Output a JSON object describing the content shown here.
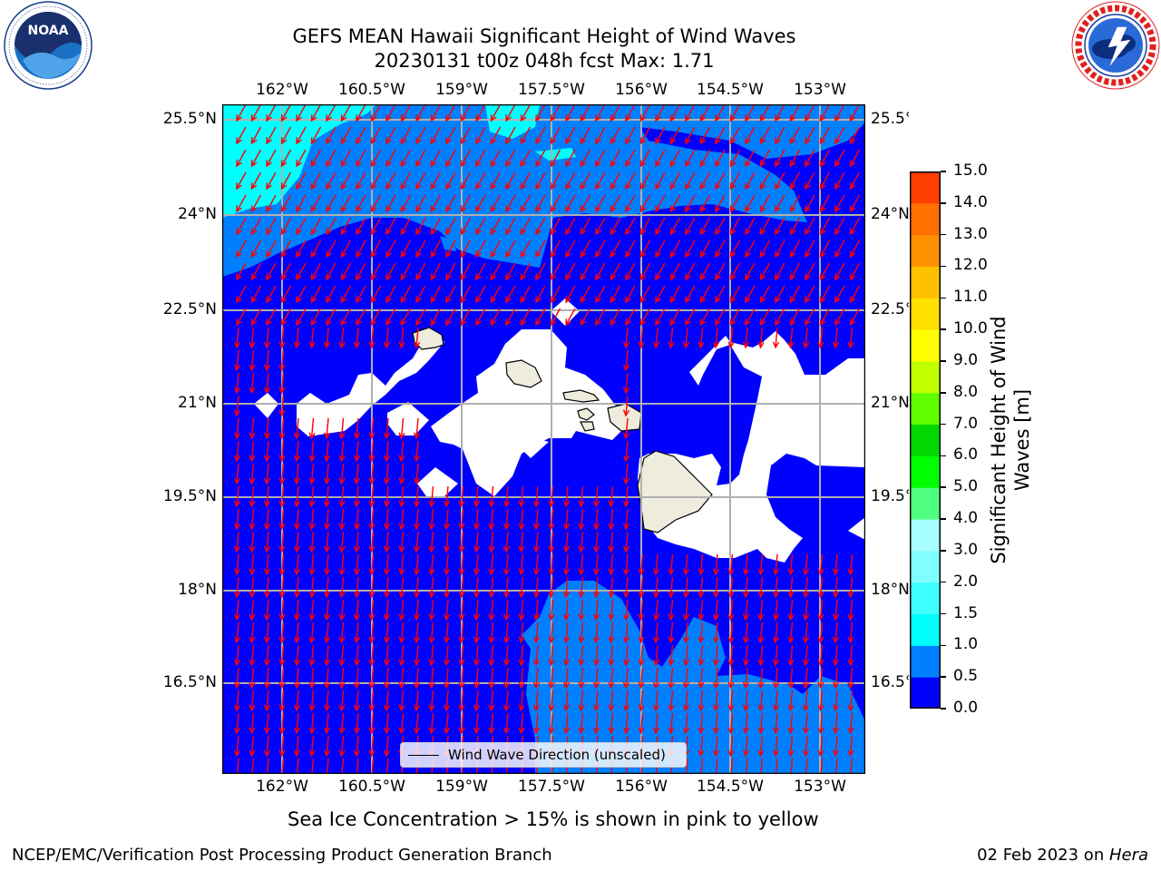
{
  "title": {
    "line1": "GEFS MEAN Hawaii Significant Height of Wind Waves",
    "line2": "20230131 t00z 048h fcst   Max: 1.71"
  },
  "logos": {
    "left": {
      "name": "noaa-logo",
      "text": "NOAA",
      "ring_text": "NATIONAL OCEANIC AND ATMOSPHERIC ADMINISTRATION · U.S. DEPARTMENT OF COMMERCE"
    },
    "right": {
      "name": "nws-logo",
      "ring_text": "NATIONAL WEATHER SERVICE"
    }
  },
  "map": {
    "lon_labels": [
      "162°W",
      "160.5°W",
      "159°W",
      "157.5°W",
      "156°W",
      "154.5°W",
      "153°W"
    ],
    "lat_labels": [
      "25.5°N",
      "24°N",
      "22.5°N",
      "21°N",
      "19.5°N",
      "18°N",
      "16.5°N"
    ],
    "lon_range": [
      -163,
      -152.5
    ],
    "lat_range": [
      15.25,
      25.75
    ],
    "colors": {
      "lt_0_5": "#0000ff",
      "0_5_1_0": "#0080ff",
      "1_0_1_5": "#00ffff",
      "land_mask": "#ffffff",
      "island": "#eeecdc",
      "arrow": "#ff0000",
      "grid": "#b0b0b0"
    }
  },
  "legend": {
    "label": "Wind Wave Direction (unscaled)"
  },
  "colorbar": {
    "label": "Significant Height of Wind Waves [m]",
    "label_line1": "Significant Height of Wind",
    "label_line2": "Waves [m]",
    "ticks": [
      "15.0",
      "14.0",
      "13.0",
      "12.0",
      "11.0",
      "10.0",
      "9.0",
      "8.0",
      "7.0",
      "6.0",
      "5.0",
      "4.0",
      "3.0",
      "2.0",
      "1.5",
      "1.0",
      "0.5",
      "0.0"
    ],
    "colors": [
      "#0000ff",
      "#0080ff",
      "#00ffff",
      "#40ffff",
      "#80ffff",
      "#a8ffff",
      "#50ff80",
      "#00ff00",
      "#00d800",
      "#60ff00",
      "#c0ff00",
      "#ffff00",
      "#ffe000",
      "#ffc000",
      "#ff9000",
      "#ff7000",
      "#ff4000",
      "#ff2000",
      "#ff0000"
    ]
  },
  "note": "Sea Ice Concentration > 15% is shown in pink to yellow",
  "footer": {
    "left": "NCEP/EMC/Verification Post Processing Product Generation Branch",
    "right_prefix": "02 Feb 2023 on ",
    "right_machine": "Hera"
  }
}
